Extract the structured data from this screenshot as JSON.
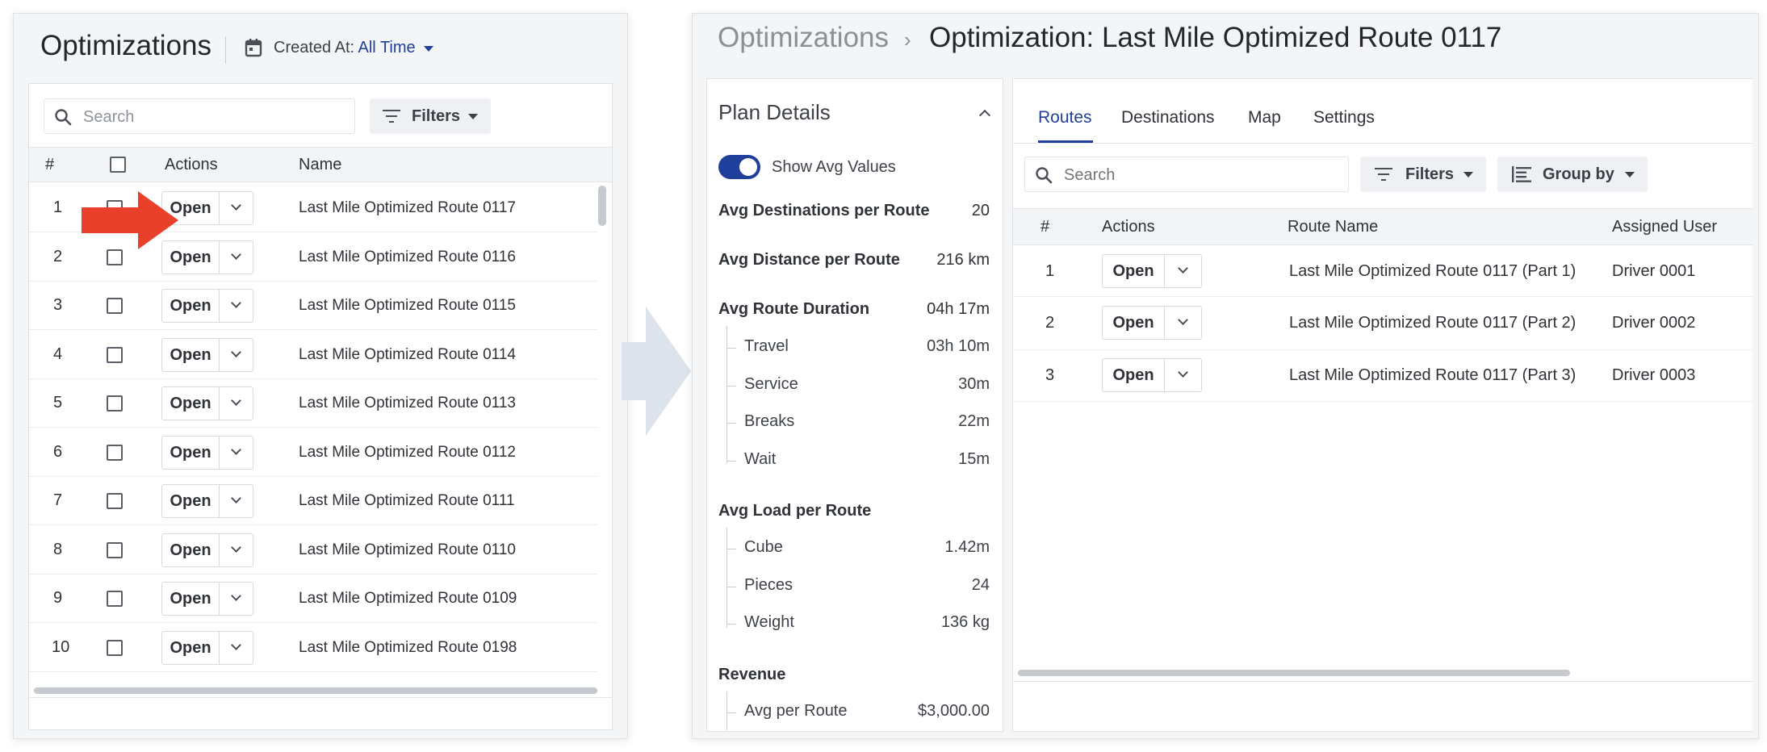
{
  "left": {
    "title": "Optimizations",
    "created_label": "Created At: ",
    "created_value": "All Time",
    "search_placeholder": "Search",
    "filters_label": "Filters",
    "columns": {
      "num": "#",
      "actions": "Actions",
      "name": "Name"
    },
    "open_label": "Open",
    "rows": [
      {
        "num": "1",
        "name": "Last Mile Optimized Route 0117"
      },
      {
        "num": "2",
        "name": "Last Mile Optimized Route 0116"
      },
      {
        "num": "3",
        "name": "Last Mile Optimized Route 0115"
      },
      {
        "num": "4",
        "name": "Last Mile Optimized Route 0114"
      },
      {
        "num": "5",
        "name": "Last Mile Optimized Route 0113"
      },
      {
        "num": "6",
        "name": "Last Mile Optimized Route 0112"
      },
      {
        "num": "7",
        "name": "Last Mile Optimized Route 0111"
      },
      {
        "num": "8",
        "name": "Last Mile Optimized Route 0110"
      },
      {
        "num": "9",
        "name": "Last Mile Optimized Route 0109"
      },
      {
        "num": "10",
        "name": "Last Mile Optimized Route 0198"
      }
    ]
  },
  "right": {
    "breadcrumb_root": "Optimizations",
    "breadcrumb_sep": "›",
    "breadcrumb_current": "Optimization: Last Mile Optimized Route 0117",
    "plan": {
      "title": "Plan Details",
      "toggle_label": "Show Avg Values",
      "toggle_on": true,
      "avg_destinations_label": "Avg Destinations per Route",
      "avg_destinations_value": "20",
      "avg_distance_label": "Avg Distance per Route",
      "avg_distance_value": "216 km",
      "avg_duration_label": "Avg Route Duration",
      "avg_duration_value": "04h 17m",
      "duration_items": [
        {
          "label": "Travel",
          "value": "03h 10m"
        },
        {
          "label": "Service",
          "value": "30m"
        },
        {
          "label": "Breaks",
          "value": "22m"
        },
        {
          "label": "Wait",
          "value": "15m"
        }
      ],
      "avg_load_label": "Avg Load per Route",
      "load_items": [
        {
          "label": "Cube",
          "value": "1.42m"
        },
        {
          "label": "Pieces",
          "value": "24"
        },
        {
          "label": "Weight",
          "value": "136 kg"
        }
      ],
      "revenue_label": "Revenue",
      "revenue_items": [
        {
          "label": "Avg per Route",
          "value": "$3,000.00"
        }
      ]
    },
    "tabs": [
      "Routes",
      "Destinations",
      "Map",
      "Settings"
    ],
    "active_tab": "Routes",
    "search_placeholder": "Search",
    "filters_label": "Filters",
    "groupby_label": "Group by",
    "columns": {
      "num": "#",
      "actions": "Actions",
      "route_name": "Route Name",
      "assigned_user": "Assigned User"
    },
    "open_label": "Open",
    "rows": [
      {
        "num": "1",
        "route_name": "Last Mile Optimized Route 0117 (Part 1)",
        "assigned_user": "Driver 0001"
      },
      {
        "num": "2",
        "route_name": "Last Mile Optimized Route 0117 (Part 2)",
        "assigned_user": "Driver 0002"
      },
      {
        "num": "3",
        "route_name": "Last Mile Optimized Route 0117 (Part 3)",
        "assigned_user": "Driver 0003"
      }
    ]
  },
  "colors": {
    "accent": "#1f3f9a",
    "highlight_arrow": "#e8402a",
    "flow_arrow": "#dde3ec"
  }
}
